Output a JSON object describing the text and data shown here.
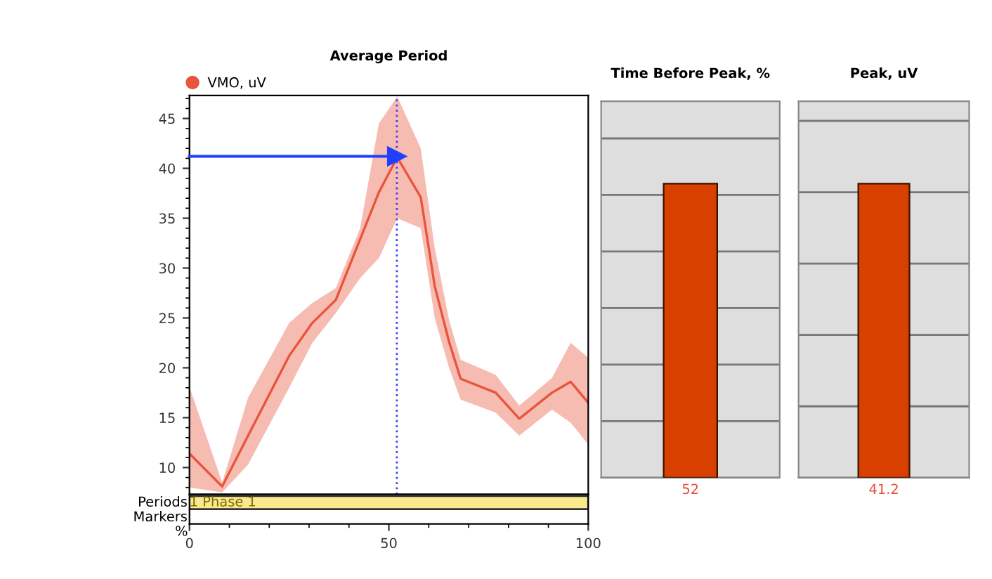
{
  "chart_data": [
    {
      "type": "line",
      "title": "Average Period",
      "xlabel": "%",
      "x": [
        0,
        8.2,
        14.7,
        25,
        30.8,
        36.7,
        42.8,
        47.5,
        52.1,
        58,
        61.5,
        65.1,
        68,
        76.8,
        82.7,
        90.9,
        95.6,
        100
      ],
      "series": [
        {
          "name": "VMO, uV",
          "color": "#e8543c",
          "values": [
            11.4,
            8.1,
            13.2,
            21.2,
            24.5,
            26.8,
            32.9,
            37.6,
            41.1,
            37.1,
            28.2,
            22.6,
            18.9,
            17.5,
            14.9,
            17.5,
            18.6,
            16.5
          ],
          "lower": [
            8,
            7.5,
            10.3,
            18,
            22.5,
            25.5,
            29,
            31,
            35,
            34,
            25,
            20,
            16.8,
            15.5,
            13.2,
            15.8,
            14.5,
            12.3
          ],
          "upper": [
            18.1,
            8.5,
            17,
            24.5,
            26.5,
            28,
            34,
            44.5,
            47.2,
            42,
            32,
            24.8,
            20.8,
            19.3,
            16.2,
            19,
            22.5,
            21
          ]
        }
      ],
      "xlim": [
        0,
        100
      ],
      "ylim": [
        7.3,
        47.3
      ],
      "xticks": [
        0,
        50,
        100
      ],
      "yticks": [
        10,
        15,
        20,
        25,
        30,
        35,
        40,
        45
      ],
      "ref_lines": [
        {
          "axis": "x",
          "value": 52,
          "color": "#4040ff",
          "line_style": "dotted"
        },
        {
          "axis": "y",
          "value": 41.2,
          "color": "#2040ff",
          "line_style": "solid"
        }
      ],
      "annotations": [
        "Periods",
        "Markers",
        "1 Phase 1"
      ],
      "legend": "top left",
      "marker": "none",
      "line_style": "solid",
      "grid": false
    },
    {
      "type": "bar",
      "title": "Time Before Peak, %",
      "categories": [
        null
      ],
      "values": [
        52
      ],
      "colors": [
        "#d84000"
      ],
      "data_labels": true,
      "grid": "y",
      "tick_labels": false
    },
    {
      "type": "bar",
      "title": "Peak, uV",
      "categories": [
        null
      ],
      "values": [
        41.2
      ],
      "colors": [
        "#d84000"
      ],
      "data_labels": true,
      "grid": "y",
      "tick_labels": false
    }
  ]
}
